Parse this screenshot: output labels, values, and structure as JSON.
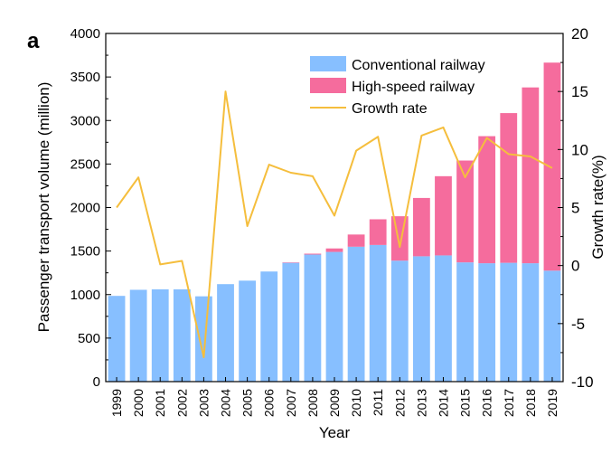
{
  "panel_label": "a",
  "chart_data": {
    "type": "bar",
    "stacked": true,
    "xlabel": "Year",
    "ylabel": "Passenger transport volume (million)",
    "y2label": "Growth rate(%)",
    "ylim": [
      0,
      4000
    ],
    "y_ticks": [
      0,
      500,
      1000,
      1500,
      2000,
      2500,
      3000,
      3500,
      4000
    ],
    "y2lim": [
      -10,
      20
    ],
    "y2_ticks": [
      -10,
      -5,
      0,
      5,
      10,
      15,
      20
    ],
    "categories": [
      "1999",
      "2000",
      "2001",
      "2002",
      "2003",
      "2004",
      "2005",
      "2006",
      "2007",
      "2008",
      "2009",
      "2010",
      "2011",
      "2012",
      "2013",
      "2014",
      "2015",
      "2016",
      "2017",
      "2018",
      "2019"
    ],
    "series": [
      {
        "name": "Conventional railway",
        "kind": "bar",
        "color": "#87BFFF",
        "values": [
          985,
          1055,
          1060,
          1060,
          980,
          1120,
          1160,
          1265,
          1365,
          1460,
          1490,
          1550,
          1570,
          1390,
          1440,
          1450,
          1370,
          1360,
          1365,
          1360,
          1275
        ]
      },
      {
        "name": "High-speed railway",
        "kind": "bar",
        "color": "#F56C9D",
        "values": [
          0,
          0,
          0,
          0,
          0,
          0,
          0,
          0,
          5,
          10,
          40,
          140,
          295,
          510,
          670,
          910,
          1170,
          1460,
          1720,
          2020,
          2390
        ]
      },
      {
        "name": "Growth rate",
        "kind": "line",
        "axis": "right",
        "color": "#F5BE3D",
        "values": [
          5.0,
          7.6,
          0.1,
          0.4,
          -7.9,
          15.0,
          3.4,
          8.7,
          8.0,
          7.7,
          4.3,
          9.9,
          11.1,
          1.6,
          11.2,
          11.9,
          7.6,
          11.0,
          9.6,
          9.4,
          8.4
        ]
      }
    ],
    "legend": {
      "position": "top-right",
      "entries": [
        "Conventional railway",
        "High-speed railway",
        "Growth rate"
      ]
    }
  }
}
